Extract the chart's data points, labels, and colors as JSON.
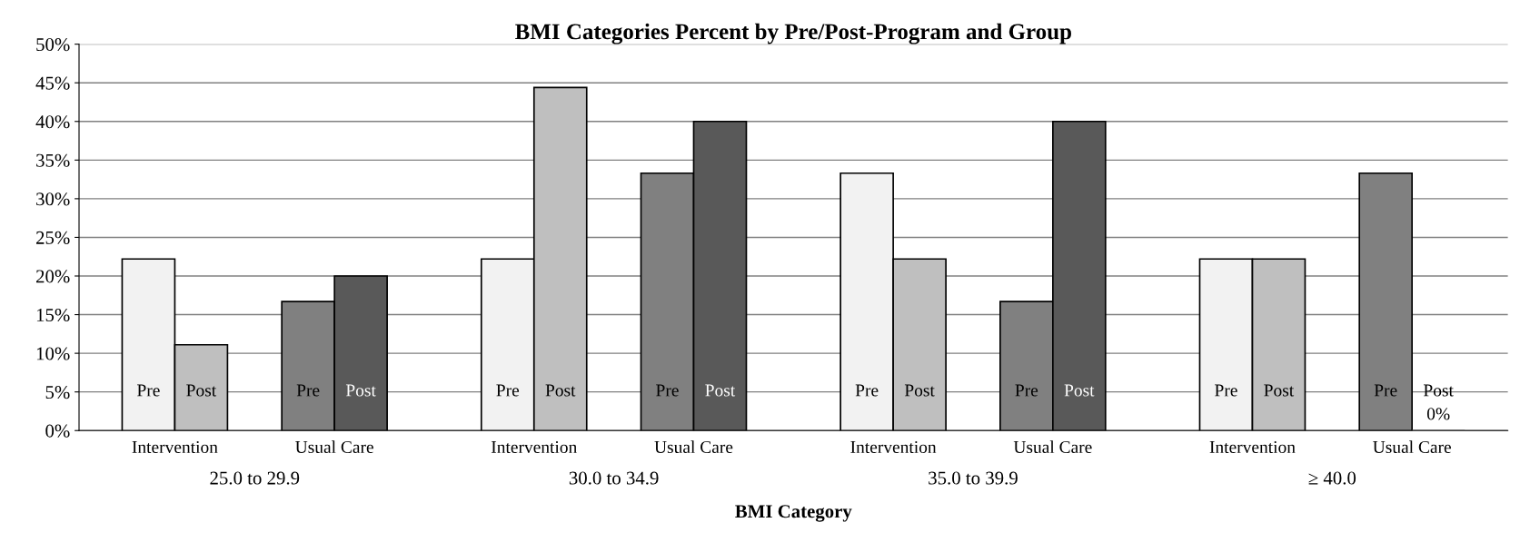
{
  "chart_data": {
    "type": "bar",
    "title": "BMI Categories Percent by Pre/Post-Program and Group",
    "xlabel": "BMI Category",
    "categories": [
      "Intervention",
      "Usual Care",
      "Intervention",
      "Usual Care",
      "Intervention",
      "Usual Care",
      "Intervention",
      "Usual Care"
    ],
    "annotations": [
      "25.0 to 29.9",
      "30.0 to 34.9",
      "35.0 to 39.9",
      "≥ 40.0"
    ],
    "series": [
      {
        "name": "Pre",
        "colors": [
          "#f2f2f2",
          "#808080",
          "#f2f2f2",
          "#808080",
          "#f2f2f2",
          "#808080",
          "#f2f2f2",
          "#808080"
        ],
        "values": [
          22.2,
          16.7,
          22.2,
          33.3,
          33.3,
          16.7,
          22.2,
          33.3
        ]
      },
      {
        "name": "Post",
        "colors": [
          "#bfbfbf",
          "#595959",
          "#bfbfbf",
          "#595959",
          "#bfbfbf",
          "#595959",
          "#bfbfbf",
          "#595959"
        ],
        "values": [
          11.1,
          20.0,
          44.4,
          40.0,
          22.2,
          40.0,
          22.2,
          0
        ],
        "value_labels": [
          null,
          null,
          null,
          null,
          null,
          null,
          null,
          "0%"
        ]
      }
    ],
    "ylim": [
      0,
      50
    ],
    "yticks": [
      {
        "value": 0,
        "label": "0%"
      },
      {
        "value": 5,
        "label": "5%"
      },
      {
        "value": 10,
        "label": "10%"
      },
      {
        "value": 15,
        "label": "15%"
      },
      {
        "value": 20,
        "label": "20%"
      },
      {
        "value": 25,
        "label": "25%"
      },
      {
        "value": 30,
        "label": "30%"
      },
      {
        "value": 35,
        "label": "35%"
      },
      {
        "value": 40,
        "label": "40%"
      },
      {
        "value": 45,
        "label": "45%"
      },
      {
        "value": 50,
        "label": "50%"
      }
    ],
    "grid": "y"
  }
}
